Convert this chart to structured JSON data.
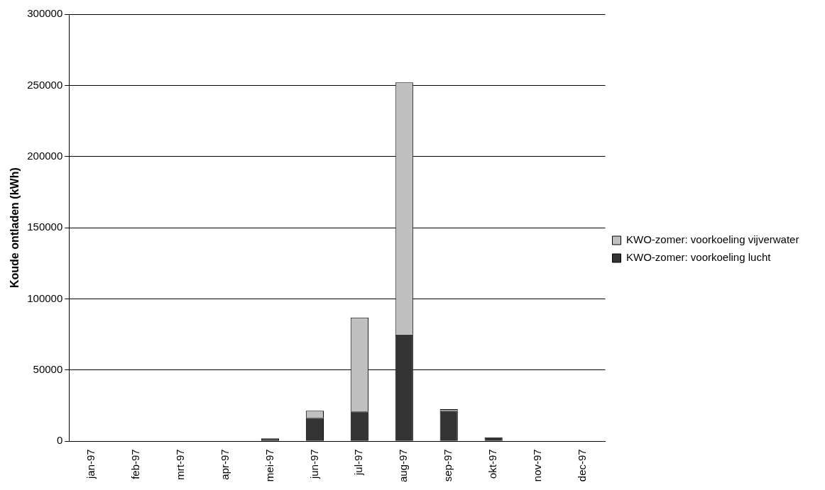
{
  "chart_data": {
    "type": "bar",
    "ylabel": "Koude ontladen (kWh)",
    "categories": [
      "jan-97",
      "feb-97",
      "mrt-97",
      "apr-97",
      "mei-97",
      "jun-97",
      "jul-97",
      "aug-97",
      "sep-97",
      "okt-97",
      "nov-97",
      "dec-97"
    ],
    "stacked": true,
    "series": [
      {
        "name": "KWO-zomer: voorkoeling lucht",
        "color": "#333333",
        "values": [
          0,
          0,
          300,
          0,
          2000,
          16500,
          21000,
          75000,
          21500,
          2800,
          0,
          0
        ]
      },
      {
        "name": "KWO-zomer: voorkoeling vijverwater",
        "color": "#c0c0c0",
        "values": [
          0,
          0,
          0,
          0,
          0,
          5000,
          66000,
          177000,
          1000,
          null,
          0,
          0
        ]
      }
    ],
    "ylim": [
      0,
      300000
    ],
    "yticks": [
      0,
      50000,
      100000,
      150000,
      200000,
      250000,
      300000
    ],
    "grid": "y",
    "legend": "right"
  }
}
